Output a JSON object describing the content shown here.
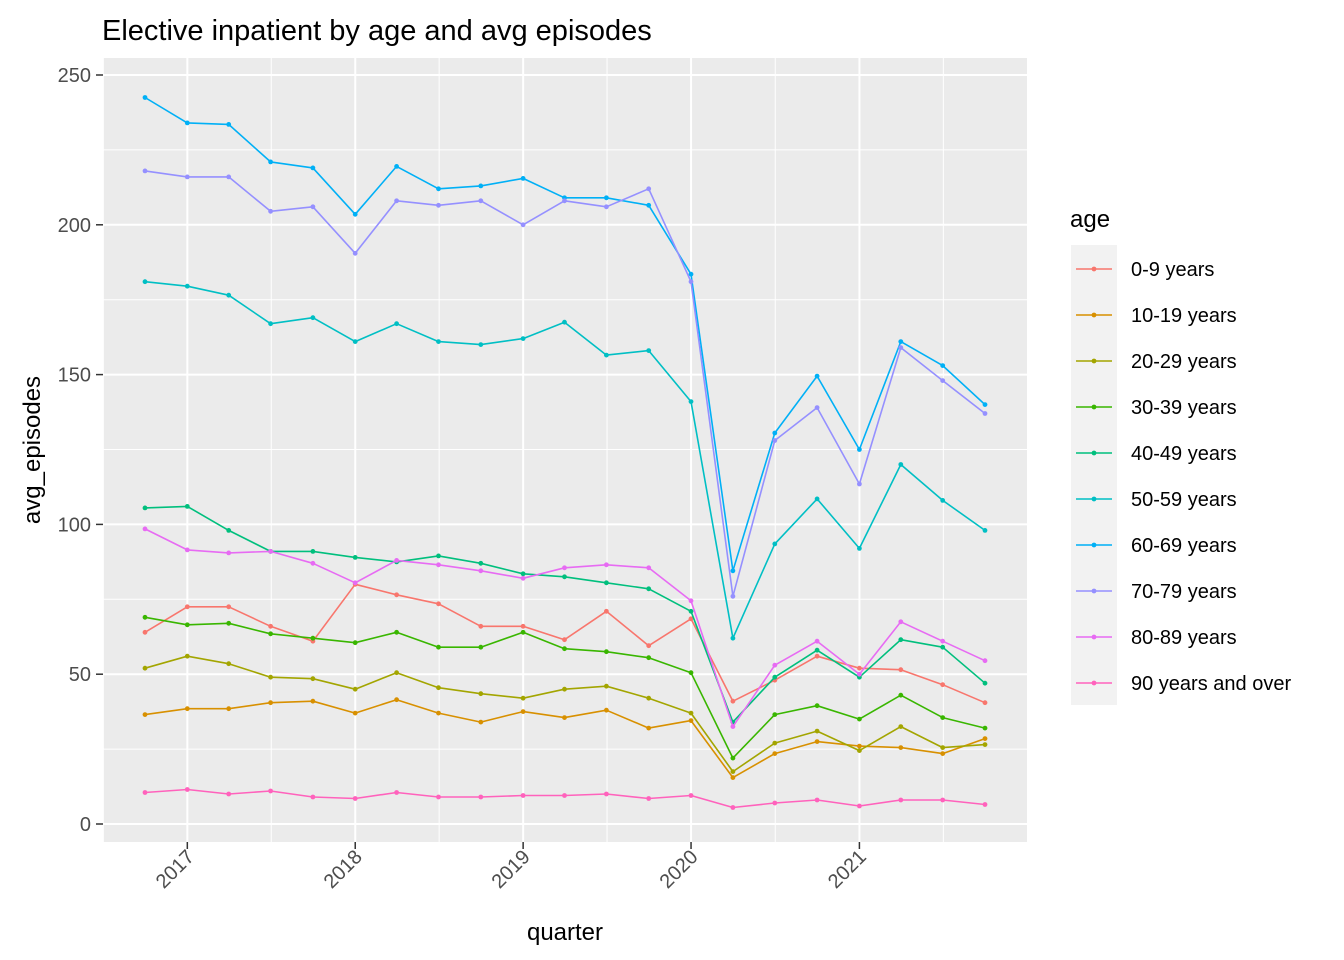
{
  "chart_data": {
    "type": "line",
    "title": "Elective inpatient by age and avg episodes",
    "xlabel": "quarter",
    "ylabel": "avg_episodes",
    "legend_title": "age",
    "legend_position": "right",
    "grid": true,
    "x_ticks": [
      "2017",
      "2018",
      "2019",
      "2020",
      "2021"
    ],
    "y_ticks": [
      "0",
      "50",
      "100",
      "150",
      "200",
      "250"
    ],
    "ylim": [
      0,
      250
    ],
    "x": [
      "2016-10-01",
      "2017-01-01",
      "2017-04-01",
      "2017-07-01",
      "2017-10-01",
      "2018-01-01",
      "2018-04-01",
      "2018-07-01",
      "2018-10-01",
      "2019-01-01",
      "2019-04-01",
      "2019-07-01",
      "2019-10-01",
      "2020-01-01",
      "2020-04-01",
      "2020-07-01",
      "2020-10-01",
      "2021-01-01",
      "2021-04-01",
      "2021-07-01",
      "2021-10-01"
    ],
    "series": [
      {
        "name": "0-9 years",
        "color": "#F8766D",
        "values": [
          64,
          72.5,
          72.5,
          66,
          61,
          80,
          76.5,
          73.5,
          66,
          66,
          61.5,
          71,
          59.5,
          68.5,
          41,
          48,
          56,
          52,
          51.5,
          46.5,
          40.5
        ]
      },
      {
        "name": "10-19 years",
        "color": "#D89000",
        "values": [
          36.5,
          38.5,
          38.5,
          40.5,
          41,
          37,
          41.5,
          37,
          34,
          37.5,
          35.5,
          38,
          32,
          34.5,
          15.5,
          23.5,
          27.5,
          26,
          25.5,
          23.5,
          28.5
        ]
      },
      {
        "name": "20-29 years",
        "color": "#A3A500",
        "values": [
          52,
          56,
          53.5,
          49,
          48.5,
          45,
          50.5,
          45.5,
          43.5,
          42,
          45,
          46,
          42,
          37,
          17.5,
          27,
          31,
          24.5,
          32.5,
          25.5,
          26.5
        ]
      },
      {
        "name": "30-39 years",
        "color": "#39B600",
        "values": [
          69,
          66.5,
          67,
          63.5,
          62,
          60.5,
          64,
          59,
          59,
          64,
          58.5,
          57.5,
          55.5,
          50.5,
          22,
          36.5,
          39.5,
          35,
          43,
          35.5,
          32
        ]
      },
      {
        "name": "40-49 years",
        "color": "#00BF7D",
        "values": [
          105.5,
          106,
          98,
          91,
          91,
          89,
          87.5,
          89.5,
          87,
          83.5,
          82.5,
          80.5,
          78.5,
          71,
          34,
          49,
          58,
          49,
          61.5,
          59,
          47
        ]
      },
      {
        "name": "50-59 years",
        "color": "#00BFC4",
        "values": [
          181,
          179.5,
          176.5,
          167,
          169,
          161,
          167,
          161,
          160,
          162,
          167.5,
          156.5,
          158,
          141,
          62,
          93.5,
          108.5,
          92,
          120,
          108,
          98
        ]
      },
      {
        "name": "60-69 years",
        "color": "#00B0F6",
        "values": [
          242.5,
          234,
          233.5,
          221,
          219,
          203.5,
          219.5,
          212,
          213,
          215.5,
          209,
          209,
          206.5,
          183.5,
          84.5,
          130.5,
          149.5,
          125,
          161,
          153,
          140
        ]
      },
      {
        "name": "70-79 years",
        "color": "#9590FF",
        "values": [
          218,
          216,
          216,
          204.5,
          206,
          190.5,
          208,
          206.5,
          208,
          200,
          208,
          206,
          212,
          181,
          76,
          128,
          139,
          113.5,
          159,
          148,
          137
        ]
      },
      {
        "name": "80-89 years",
        "color": "#E76BF3",
        "values": [
          98.5,
          91.5,
          90.5,
          91,
          87,
          80.5,
          88,
          86.5,
          84.5,
          82,
          85.5,
          86.5,
          85.5,
          74.5,
          32.5,
          53,
          61,
          50,
          67.5,
          61,
          54.5
        ]
      },
      {
        "name": "90 years and over",
        "color": "#FF62BC",
        "values": [
          10.5,
          11.5,
          10,
          11,
          9,
          8.5,
          10.5,
          9,
          9,
          9.5,
          9.5,
          10,
          8.5,
          9.5,
          5.5,
          7,
          8,
          6,
          8,
          8,
          6.5
        ]
      }
    ]
  }
}
